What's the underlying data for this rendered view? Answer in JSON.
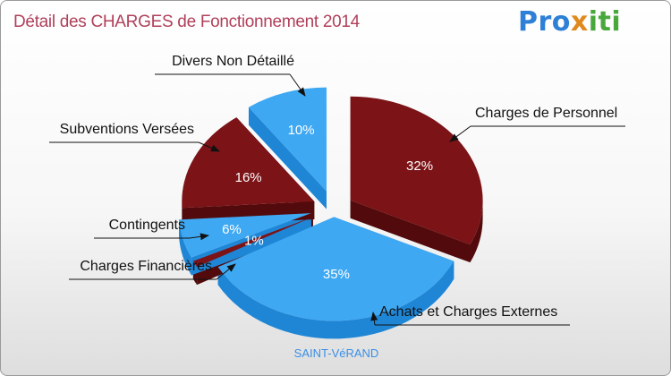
{
  "header": {
    "title": "Détail des CHARGES de Fonctionnement 2014",
    "logo": "Proxiti",
    "logo_parts": [
      "Pro",
      "x",
      "iti"
    ]
  },
  "commune": "SAINT-VéRAND",
  "colors": {
    "red_top": "#7b1317",
    "red_side": "#520a0c",
    "blue_top": "#3ea8f2",
    "blue_side": "#1f86d6",
    "title": "#b0405a",
    "logo_blue": "#2e7fd6",
    "logo_orange": "#e08a1e",
    "logo_green": "#49a83b"
  },
  "chart_data": {
    "type": "pie",
    "title": "Détail des CHARGES de Fonctionnement 2014",
    "unit": "%",
    "slices": [
      {
        "label": "Charges de Personnel",
        "value": 32,
        "display": "32%",
        "color": "red"
      },
      {
        "label": "Achats et Charges Externes",
        "value": 35,
        "display": "35%",
        "color": "blue"
      },
      {
        "label": "Charges Financières",
        "value": 1,
        "display": "1%",
        "color": "red"
      },
      {
        "label": "Contingents",
        "value": 6,
        "display": "6%",
        "color": "blue"
      },
      {
        "label": "Subventions Versées",
        "value": 16,
        "display": "16%",
        "color": "red"
      },
      {
        "label": "Divers Non Détaillé",
        "value": 10,
        "display": "10%",
        "color": "blue"
      }
    ]
  }
}
